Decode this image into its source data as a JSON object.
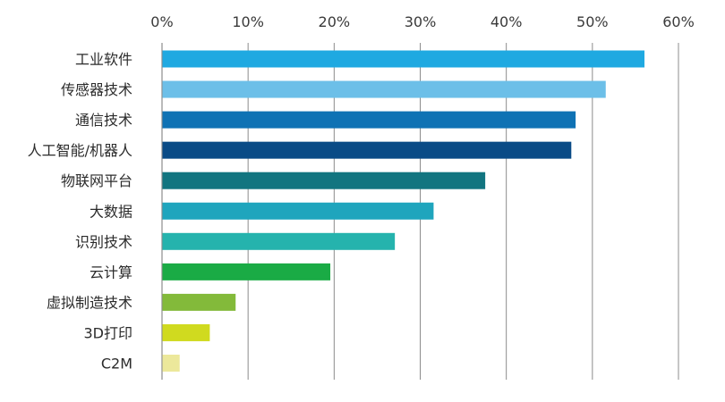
{
  "chart_data": {
    "type": "bar",
    "orientation": "horizontal",
    "categories": [
      "工业软件",
      "传感器技术",
      "通信技术",
      "人工智能/机器人",
      "物联网平台",
      "大数据",
      "识别技术",
      "云计算",
      "虚拟制造技术",
      "3D打印",
      "C2M"
    ],
    "values": [
      56,
      51.5,
      48,
      47.5,
      37.5,
      31.5,
      27,
      19.5,
      8.5,
      5.5,
      2
    ],
    "colors": [
      "#1fa9e1",
      "#6cbfe8",
      "#0f72b4",
      "#0a4b86",
      "#127580",
      "#1fa5bd",
      "#25b3ad",
      "#1aab45",
      "#83ba3a",
      "#d0da1f",
      "#ece89b"
    ],
    "xlim": [
      0,
      60
    ],
    "ticks": [
      "0%",
      "10%",
      "20%",
      "30%",
      "40%",
      "50%",
      "60%"
    ],
    "grid": true,
    "xaxis_position": "top",
    "title": "",
    "xlabel": "",
    "ylabel": ""
  }
}
